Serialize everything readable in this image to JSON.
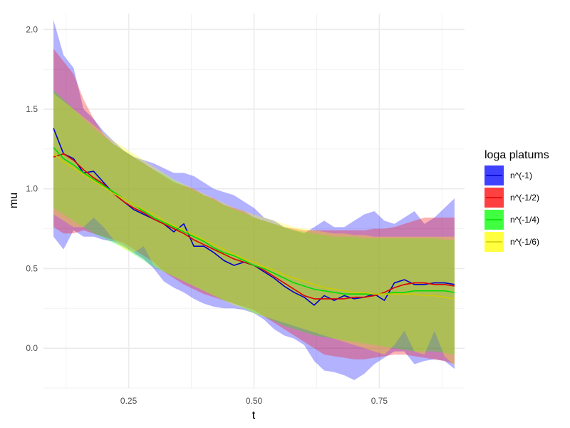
{
  "chart_data": {
    "type": "line",
    "xlabel": "t",
    "ylabel": "mu",
    "xlim": [
      0.08,
      0.92
    ],
    "ylim": [
      -0.25,
      2.1
    ],
    "x_ticks": [
      0.25,
      0.5,
      0.75
    ],
    "x_tick_labels": [
      "0.25",
      "0.50",
      "0.75"
    ],
    "y_ticks": [
      0.0,
      0.5,
      1.0,
      1.5,
      2.0
    ],
    "y_tick_labels": [
      "0.0",
      "0.5",
      "1.0",
      "1.5",
      "2.0"
    ],
    "grid": true,
    "legend": {
      "title": "loga platums",
      "position": "right"
    },
    "x": [
      0.1,
      0.12,
      0.14,
      0.16,
      0.18,
      0.2,
      0.22,
      0.24,
      0.26,
      0.28,
      0.3,
      0.32,
      0.34,
      0.36,
      0.38,
      0.4,
      0.42,
      0.44,
      0.46,
      0.48,
      0.5,
      0.52,
      0.54,
      0.56,
      0.58,
      0.6,
      0.62,
      0.64,
      0.66,
      0.68,
      0.7,
      0.72,
      0.74,
      0.76,
      0.78,
      0.8,
      0.82,
      0.84,
      0.86,
      0.88,
      0.9
    ],
    "series": [
      {
        "name": "n^(-1)",
        "color": "#0000ff",
        "line_color": "#0000cc",
        "values": [
          1.38,
          1.22,
          1.19,
          1.1,
          1.11,
          1.04,
          0.97,
          0.92,
          0.87,
          0.84,
          0.81,
          0.78,
          0.73,
          0.78,
          0.64,
          0.64,
          0.6,
          0.55,
          0.52,
          0.54,
          0.52,
          0.48,
          0.44,
          0.39,
          0.35,
          0.32,
          0.27,
          0.33,
          0.3,
          0.33,
          0.31,
          0.32,
          0.34,
          0.3,
          0.41,
          0.43,
          0.4,
          0.4,
          0.41,
          0.41,
          0.4
        ],
        "lower": [
          0.7,
          0.62,
          0.74,
          0.7,
          0.7,
          0.68,
          0.67,
          0.64,
          0.6,
          0.56,
          0.5,
          0.42,
          0.38,
          0.35,
          0.31,
          0.28,
          0.26,
          0.25,
          0.25,
          0.24,
          0.22,
          0.18,
          0.12,
          0.08,
          0.06,
          0.02,
          -0.08,
          -0.14,
          -0.15,
          -0.17,
          -0.2,
          -0.16,
          -0.1,
          -0.06,
          -0.02,
          -0.02,
          -0.1,
          -0.08,
          -0.07,
          -0.08,
          -0.13
        ],
        "upper": [
          2.06,
          1.84,
          1.76,
          1.5,
          1.44,
          1.36,
          1.3,
          1.24,
          1.2,
          1.18,
          1.16,
          1.13,
          1.1,
          1.1,
          1.08,
          1.04,
          1.0,
          0.98,
          0.96,
          0.92,
          0.88,
          0.82,
          0.8,
          0.76,
          0.74,
          0.72,
          0.76,
          0.8,
          0.76,
          0.76,
          0.8,
          0.84,
          0.86,
          0.8,
          0.78,
          0.82,
          0.86,
          0.78,
          0.82,
          0.88,
          0.94
        ]
      },
      {
        "name": "n^(-1/2)",
        "color": "#ff0000",
        "line_color": "#dd0000",
        "values": [
          1.2,
          1.22,
          1.18,
          1.12,
          1.07,
          1.03,
          0.97,
          0.92,
          0.88,
          0.85,
          0.81,
          0.78,
          0.75,
          0.72,
          0.68,
          0.65,
          0.62,
          0.59,
          0.56,
          0.54,
          0.52,
          0.49,
          0.45,
          0.41,
          0.37,
          0.33,
          0.31,
          0.31,
          0.31,
          0.31,
          0.32,
          0.32,
          0.33,
          0.35,
          0.38,
          0.4,
          0.41,
          0.41,
          0.4,
          0.4,
          0.39
        ],
        "lower": [
          0.76,
          0.72,
          0.72,
          0.74,
          0.72,
          0.7,
          0.68,
          0.66,
          0.62,
          0.58,
          0.54,
          0.48,
          0.44,
          0.4,
          0.37,
          0.34,
          0.32,
          0.3,
          0.28,
          0.26,
          0.24,
          0.2,
          0.16,
          0.12,
          0.08,
          0.04,
          0.0,
          -0.04,
          -0.05,
          -0.06,
          -0.07,
          -0.07,
          -0.06,
          -0.05,
          -0.04,
          -0.04,
          -0.05,
          -0.06,
          -0.07,
          -0.08,
          -0.1
        ],
        "upper": [
          1.88,
          1.8,
          1.72,
          1.56,
          1.44,
          1.34,
          1.28,
          1.24,
          1.2,
          1.16,
          1.12,
          1.08,
          1.04,
          1.02,
          1.0,
          0.96,
          0.94,
          0.9,
          0.88,
          0.86,
          0.82,
          0.8,
          0.78,
          0.76,
          0.75,
          0.74,
          0.74,
          0.74,
          0.74,
          0.74,
          0.74,
          0.74,
          0.75,
          0.75,
          0.76,
          0.78,
          0.8,
          0.82,
          0.82,
          0.82,
          0.82
        ]
      },
      {
        "name": "n^(-1/4)",
        "color": "#00ff00",
        "line_color": "#00dd00",
        "values": [
          1.26,
          1.19,
          1.15,
          1.1,
          1.06,
          1.02,
          0.98,
          0.94,
          0.9,
          0.86,
          0.82,
          0.79,
          0.76,
          0.73,
          0.7,
          0.67,
          0.63,
          0.6,
          0.58,
          0.55,
          0.52,
          0.5,
          0.47,
          0.44,
          0.41,
          0.39,
          0.37,
          0.36,
          0.35,
          0.34,
          0.34,
          0.34,
          0.34,
          0.34,
          0.35,
          0.35,
          0.36,
          0.36,
          0.36,
          0.36,
          0.35
        ],
        "lower": [
          0.88,
          0.84,
          0.8,
          0.76,
          0.72,
          0.69,
          0.66,
          0.63,
          0.59,
          0.55,
          0.51,
          0.48,
          0.45,
          0.42,
          0.39,
          0.36,
          0.33,
          0.3,
          0.28,
          0.25,
          0.22,
          0.2,
          0.17,
          0.14,
          0.12,
          0.1,
          0.08,
          0.07,
          0.06,
          0.05,
          0.04,
          0.03,
          0.02,
          0.01,
          0.0,
          -0.01,
          -0.02,
          -0.02,
          -0.02,
          -0.03,
          -0.04
        ],
        "upper": [
          1.62,
          1.56,
          1.5,
          1.44,
          1.38,
          1.33,
          1.28,
          1.24,
          1.2,
          1.16,
          1.12,
          1.09,
          1.05,
          1.02,
          0.99,
          0.96,
          0.93,
          0.9,
          0.87,
          0.85,
          0.82,
          0.8,
          0.78,
          0.76,
          0.74,
          0.73,
          0.72,
          0.71,
          0.7,
          0.7,
          0.7,
          0.69,
          0.69,
          0.69,
          0.69,
          0.69,
          0.69,
          0.69,
          0.69,
          0.68,
          0.68
        ]
      },
      {
        "name": "n^(-1/6)",
        "color": "#ffff00",
        "line_color": "#cccc00",
        "values": [
          1.22,
          1.17,
          1.13,
          1.09,
          1.05,
          1.01,
          0.97,
          0.94,
          0.9,
          0.87,
          0.84,
          0.8,
          0.77,
          0.74,
          0.71,
          0.68,
          0.65,
          0.62,
          0.59,
          0.56,
          0.54,
          0.51,
          0.49,
          0.46,
          0.44,
          0.42,
          0.4,
          0.38,
          0.37,
          0.36,
          0.35,
          0.35,
          0.34,
          0.34,
          0.34,
          0.34,
          0.34,
          0.33,
          0.33,
          0.32,
          0.31
        ],
        "lower": [
          0.84,
          0.8,
          0.76,
          0.76,
          0.82,
          0.76,
          0.68,
          0.62,
          0.6,
          0.64,
          0.52,
          0.48,
          0.45,
          0.42,
          0.39,
          0.36,
          0.33,
          0.3,
          0.27,
          0.25,
          0.22,
          0.2,
          0.18,
          0.16,
          0.14,
          0.12,
          0.1,
          0.08,
          0.06,
          0.04,
          0.02,
          0.0,
          -0.02,
          -0.04,
          0.02,
          0.11,
          -0.02,
          -0.04,
          0.11,
          -0.05,
          -0.11
        ],
        "upper": [
          1.6,
          1.55,
          1.5,
          1.45,
          1.4,
          1.35,
          1.3,
          1.26,
          1.22,
          1.18,
          1.14,
          1.1,
          1.06,
          1.03,
          1.0,
          0.97,
          0.94,
          0.91,
          0.88,
          0.86,
          0.84,
          0.82,
          0.8,
          0.78,
          0.76,
          0.75,
          0.74,
          0.73,
          0.72,
          0.72,
          0.71,
          0.71,
          0.7,
          0.7,
          0.7,
          0.7,
          0.7,
          0.7,
          0.7,
          0.7,
          0.7
        ]
      }
    ]
  }
}
